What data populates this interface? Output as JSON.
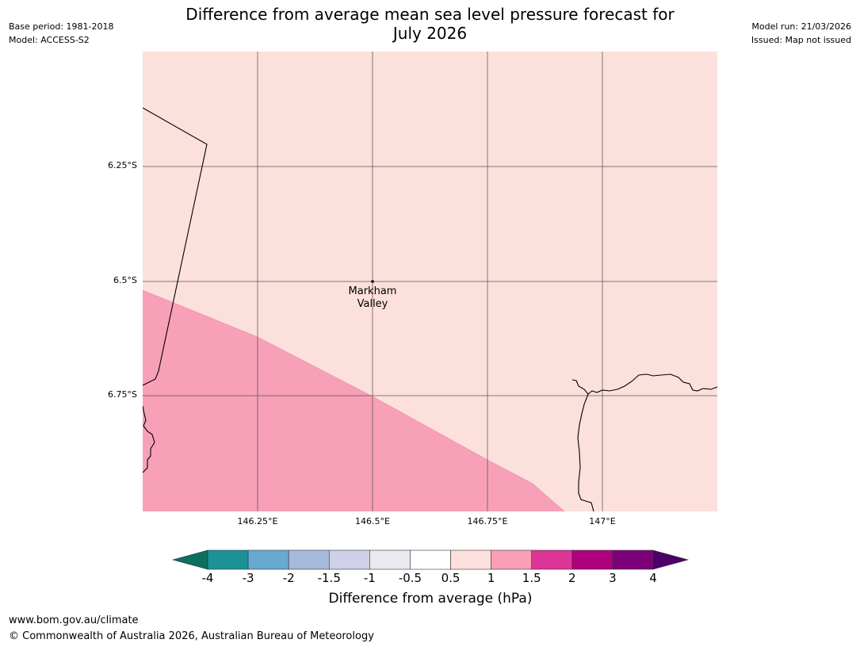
{
  "header": {
    "title_line1": "Difference from average mean sea level pressure forecast for",
    "title_line2": "July 2026",
    "base_period": "Base period: 1981-2018",
    "model": "Model: ACCESS-S2",
    "model_run": "Model run: 21/03/2026",
    "issued": "Issued: Map not issued"
  },
  "map": {
    "latitude_labels": [
      "6.25°S",
      "6.5°S",
      "6.75°S"
    ],
    "longitude_labels": [
      "146.25°E",
      "146.5°E",
      "146.75°E",
      "147°E"
    ],
    "place": {
      "name_line1": "Markham",
      "name_line2": "Valley"
    },
    "colors": {
      "background": "#fce0dc",
      "pink_region": "#f8a0b8",
      "gridline": "#555555",
      "coastline": "#000000"
    }
  },
  "colorbar": {
    "title": "Difference from average (hPa)",
    "tick_labels": [
      "-4",
      "-3",
      "-2",
      "-1.5",
      "-1",
      "-0.5",
      "0.5",
      "1",
      "1.5",
      "2",
      "3",
      "4"
    ],
    "colors": [
      "#0b6f62",
      "#1b9297",
      "#68a9d0",
      "#a6badc",
      "#d0d0e8",
      "#ebe9f0",
      "#ffffff",
      "#fde0dd",
      "#fa9fb5",
      "#dd3497",
      "#ae017e",
      "#7a0177",
      "#4d0066"
    ]
  },
  "footer": {
    "url": "www.bom.gov.au/climate",
    "copyright": "© Commonwealth of Australia 2026, Australian Bureau of Meteorology"
  }
}
